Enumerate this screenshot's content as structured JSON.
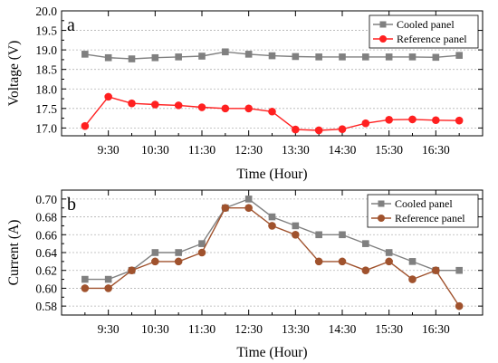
{
  "chart_data": [
    {
      "type": "line",
      "panel_label": "a",
      "xlabel": "Time (Hour)",
      "ylabel": "Voltage (V)",
      "x_tick_labels": [
        "9:30",
        "10:30",
        "11:30",
        "12:30",
        "13:30",
        "14:30",
        "15:30",
        "16:30"
      ],
      "y_tick_labels": [
        "17.0",
        "17.5",
        "18.0",
        "18.5",
        "19.0",
        "19.5",
        "20.0"
      ],
      "ylim": [
        16.8,
        20.0
      ],
      "grid": true,
      "legend_position": "top-right",
      "series": [
        {
          "name": "Cooled panel",
          "color": "#808080",
          "marker": "square",
          "x": [
            9.0,
            9.5,
            10.0,
            10.5,
            11.0,
            11.5,
            12.0,
            12.5,
            13.0,
            13.5,
            14.0,
            14.5,
            15.0,
            15.5,
            16.0,
            16.5,
            17.0
          ],
          "values": [
            18.89,
            18.8,
            18.77,
            18.8,
            18.82,
            18.84,
            18.95,
            18.89,
            18.85,
            18.83,
            18.82,
            18.82,
            18.82,
            18.82,
            18.82,
            18.81,
            18.86
          ]
        },
        {
          "name": "Reference panel",
          "color": "#ff2020",
          "marker": "circle",
          "x": [
            9.0,
            9.5,
            10.0,
            10.5,
            11.0,
            11.5,
            12.0,
            12.5,
            13.0,
            13.5,
            14.0,
            14.5,
            15.0,
            15.5,
            16.0,
            16.5,
            17.0
          ],
          "values": [
            17.05,
            17.8,
            17.63,
            17.6,
            17.58,
            17.53,
            17.5,
            17.5,
            17.42,
            16.96,
            16.94,
            16.97,
            17.12,
            17.21,
            17.22,
            17.2,
            17.19
          ]
        }
      ]
    },
    {
      "type": "line",
      "panel_label": "b",
      "xlabel": "Time (Hour)",
      "ylabel": "Current (A)",
      "x_tick_labels": [
        "9:30",
        "10:30",
        "11:30",
        "12:30",
        "13:30",
        "14:30",
        "15:30",
        "16:30"
      ],
      "y_tick_labels": [
        "0.58",
        "0.60",
        "0.62",
        "0.64",
        "0.66",
        "0.68",
        "0.70"
      ],
      "ylim": [
        0.57,
        0.71
      ],
      "grid": true,
      "legend_position": "top-right",
      "series": [
        {
          "name": "Cooled panel",
          "color": "#808080",
          "marker": "square",
          "x": [
            9.0,
            9.5,
            10.0,
            10.5,
            11.0,
            11.5,
            12.0,
            12.5,
            13.0,
            13.5,
            14.0,
            14.5,
            15.0,
            15.5,
            16.0,
            16.5,
            17.0
          ],
          "values": [
            0.61,
            0.61,
            0.62,
            0.64,
            0.64,
            0.65,
            0.69,
            0.7,
            0.68,
            0.67,
            0.66,
            0.66,
            0.65,
            0.64,
            0.63,
            0.62,
            0.62
          ]
        },
        {
          "name": "Reference panel",
          "color": "#a0522d",
          "marker": "circle",
          "x": [
            9.0,
            9.5,
            10.0,
            10.5,
            11.0,
            11.5,
            12.0,
            12.5,
            13.0,
            13.5,
            14.0,
            14.5,
            15.0,
            15.5,
            16.0,
            16.5,
            17.0
          ],
          "values": [
            0.6,
            0.6,
            0.62,
            0.63,
            0.63,
            0.64,
            0.69,
            0.69,
            0.67,
            0.66,
            0.63,
            0.63,
            0.62,
            0.63,
            0.61,
            0.62,
            0.58
          ]
        }
      ]
    }
  ]
}
